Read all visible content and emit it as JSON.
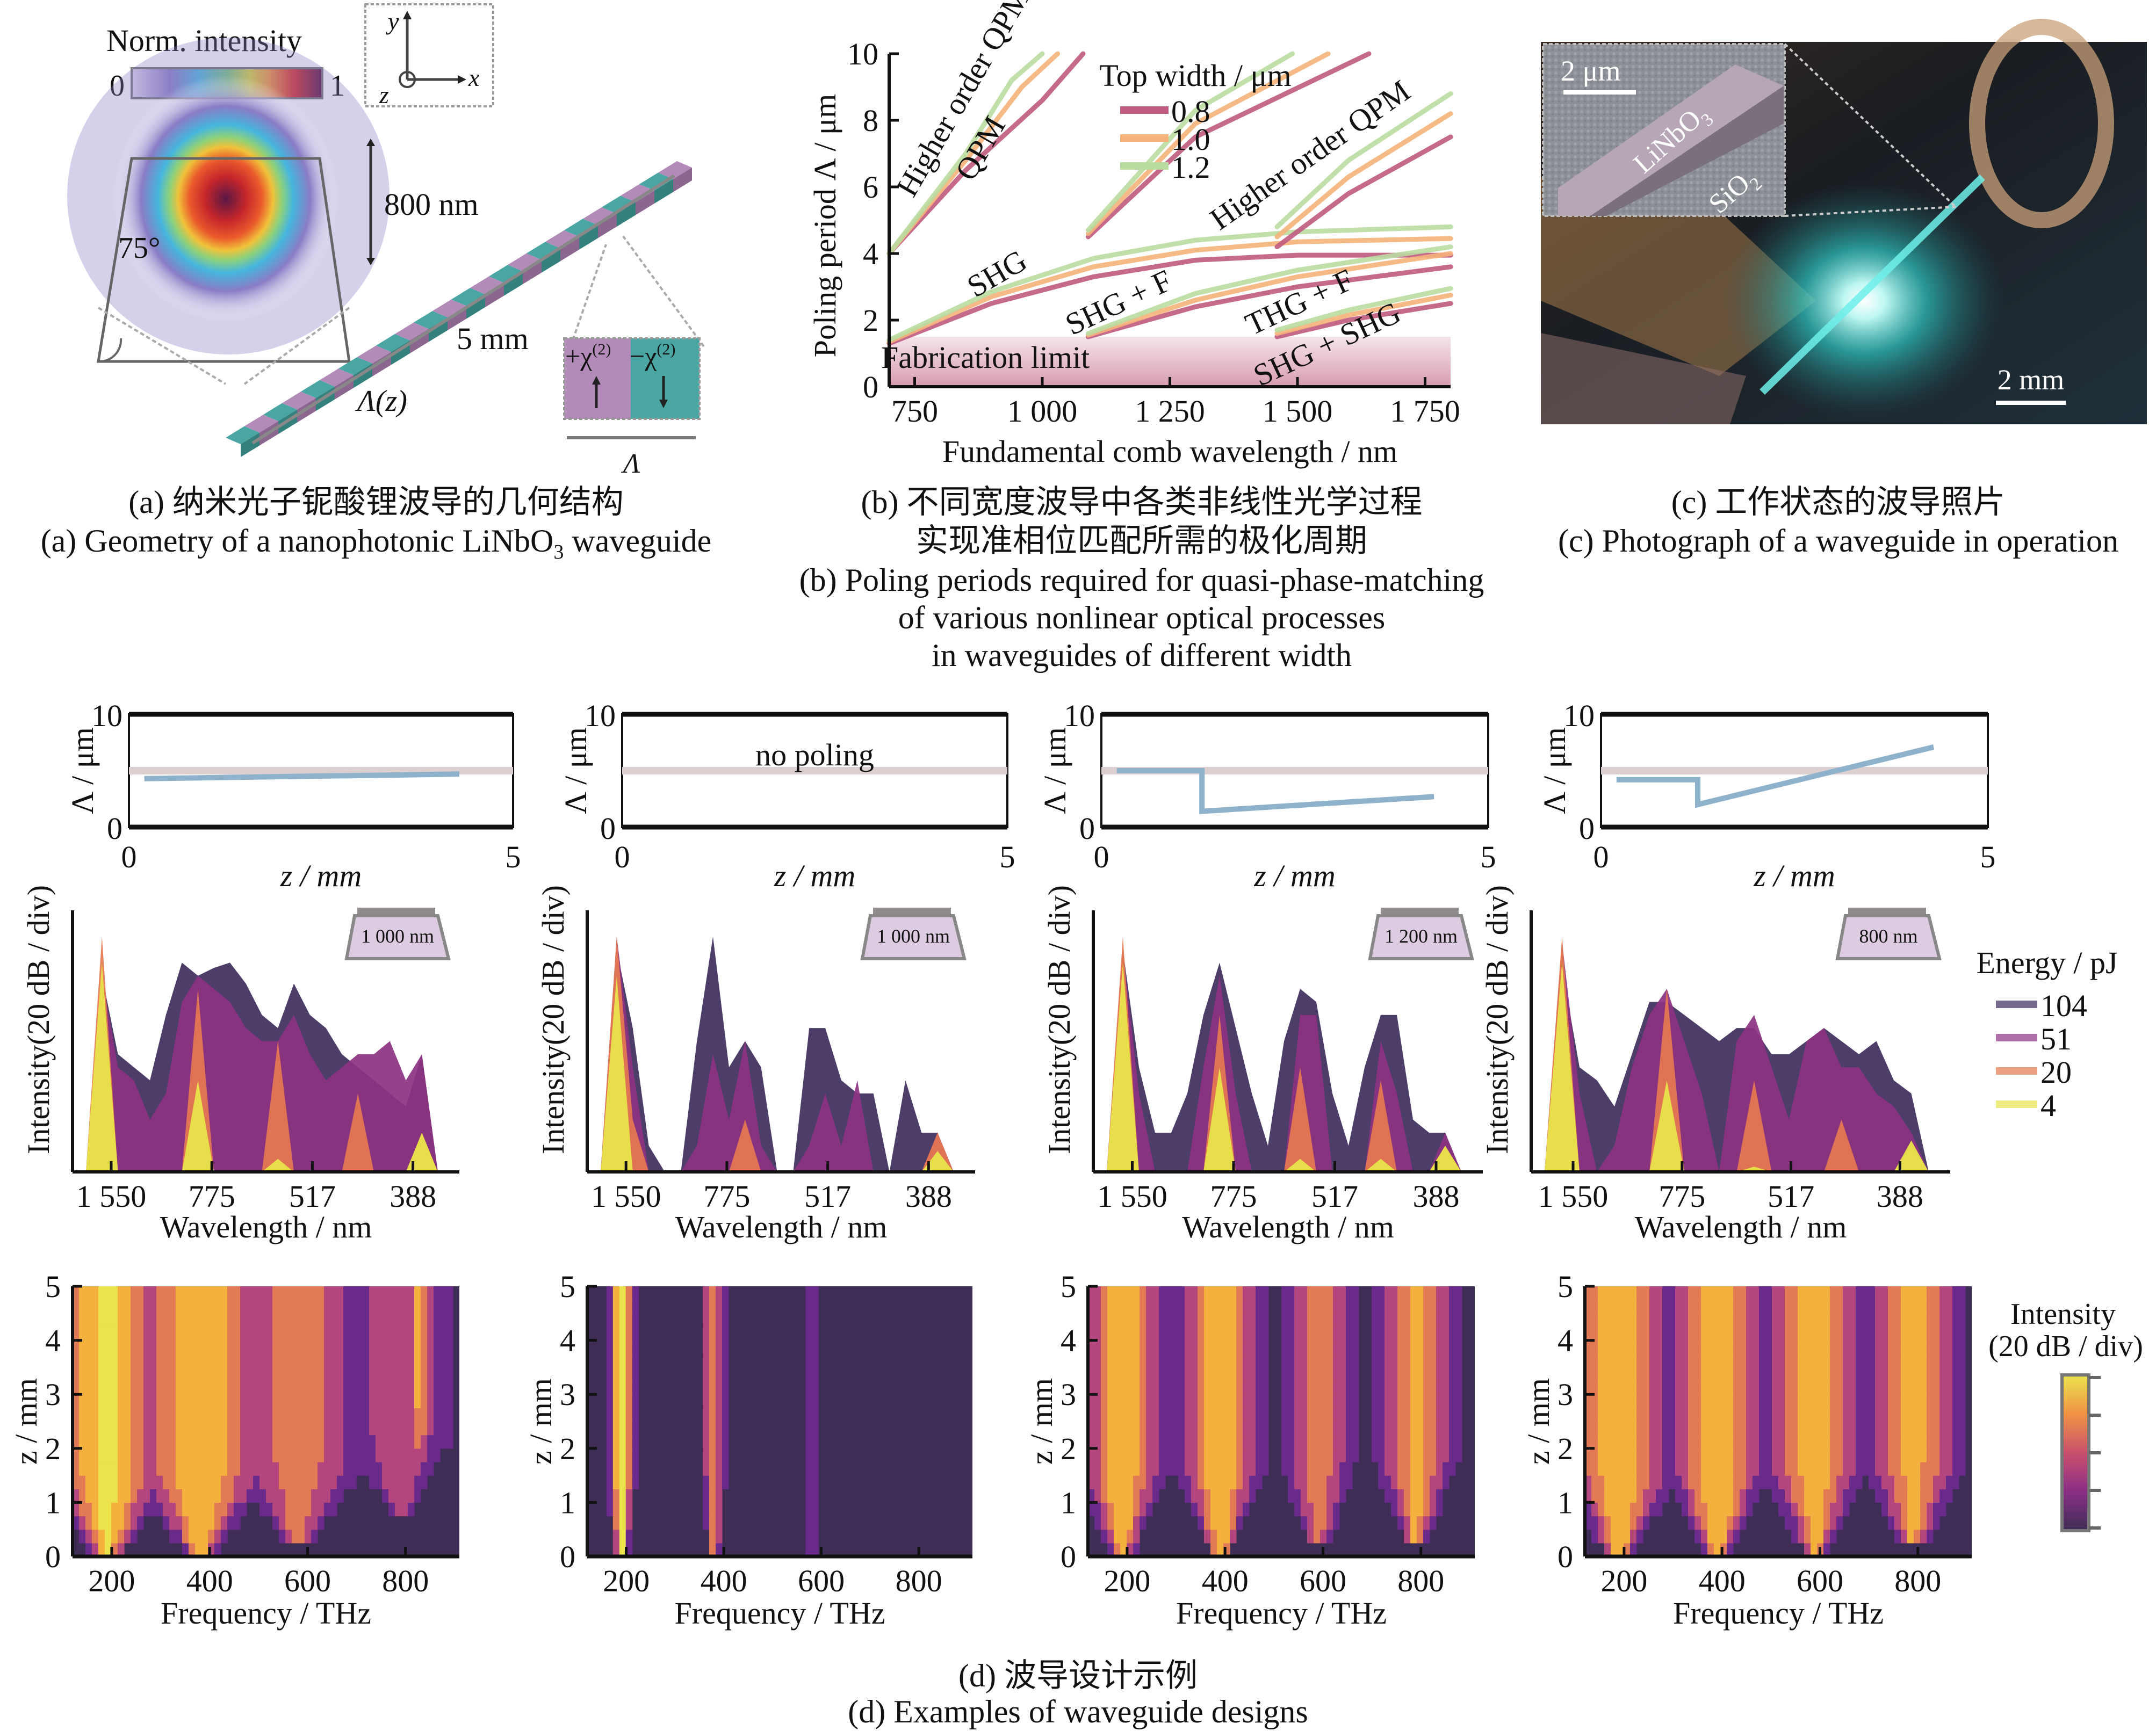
{
  "captions": {
    "a_cn": "(a) 纳米光子铌酸锂波导的几何结构",
    "a_en_pre": "(a) Geometry of a nanophotonic LiNbO",
    "a_en_sub": "3",
    "a_en_post": " waveguide",
    "b_cn_1": "(b) 不同宽度波导中各类非线性光学过程",
    "b_cn_2": "实现准相位匹配所需的极化周期",
    "b_en_1": "(b) Poling periods required for quasi-phase-matching",
    "b_en_2": "of various nonlinear optical processes",
    "b_en_3": "in waveguides of different width",
    "c_cn": "(c) 工作状态的波导照片",
    "c_en": "(c) Photograph of a waveguide in operation",
    "d_cn": "(d) 波导设计示例",
    "d_en": "(d) Examples of waveguide designs"
  },
  "panel_a": {
    "colorbar_title": "Norm. intensity",
    "colorbar_min": "0",
    "colorbar_max": "1",
    "axis_y": "y",
    "axis_x": "x",
    "axis_z": "z",
    "height_label": "800 nm",
    "angle_label": "75°",
    "length_label": "5 mm",
    "period_label": "Λ(z)",
    "domain_plus": "+χ",
    "domain_minus": "−χ",
    "domain_sup": "(2)",
    "domain_period": "Λ"
  },
  "panel_c": {
    "scale_micro": "2 μm",
    "scale_macro": "2 mm",
    "label_linbo": "LiNbO",
    "label_linbo_sub": "3",
    "label_sio": "SiO",
    "label_sio_sub": "2"
  },
  "chart_data": [
    {
      "id": "b",
      "type": "line",
      "title": "",
      "xlabel": "Fundamental comb wavelength / nm",
      "ylabel": "Poling period Λ / μm",
      "xlim": [
        700,
        1800
      ],
      "ylim": [
        0,
        10
      ],
      "xticks": [
        750,
        1000,
        1250,
        1500,
        1750
      ],
      "xtick_labels": [
        "750",
        "1 000",
        "1 250",
        "1 500",
        "1 750"
      ],
      "yticks": [
        0,
        2,
        4,
        6,
        8,
        10
      ],
      "legend_title": "Top width / μm",
      "legend_position": "top-center",
      "fabrication_limit": 1.5,
      "series": [
        {
          "name": "0.8",
          "color": "#c05a80"
        },
        {
          "name": "1.0",
          "color": "#f5b27a"
        },
        {
          "name": "1.2",
          "color": "#b9dca0"
        }
      ],
      "curves": [
        {
          "process": "Higher order QPM (left)",
          "width": "0.8",
          "x": [
            700,
            850,
            1000,
            1080
          ],
          "y": [
            4.0,
            6.5,
            8.6,
            10
          ]
        },
        {
          "process": "Higher order QPM (left)",
          "width": "1.0",
          "x": [
            700,
            850,
            960,
            1030
          ],
          "y": [
            4.0,
            6.8,
            9.0,
            10
          ]
        },
        {
          "process": "Higher order QPM (left)",
          "width": "1.2",
          "x": [
            700,
            850,
            940,
            1000
          ],
          "y": [
            4.0,
            7.0,
            9.2,
            10
          ]
        },
        {
          "process": "Higher order QPM (middle)",
          "width": "0.8",
          "x": [
            1090,
            1300,
            1640
          ],
          "y": [
            4.5,
            7.5,
            10
          ]
        },
        {
          "process": "Higher order QPM (middle)",
          "width": "1.0",
          "x": [
            1090,
            1300,
            1560
          ],
          "y": [
            4.6,
            7.9,
            10
          ]
        },
        {
          "process": "Higher order QPM (middle)",
          "width": "1.2",
          "x": [
            1090,
            1300,
            1490
          ],
          "y": [
            4.7,
            8.3,
            10
          ]
        },
        {
          "process": "SHG",
          "width": "0.8",
          "x": [
            700,
            900,
            1100,
            1300,
            1500,
            1800
          ],
          "y": [
            1.3,
            2.5,
            3.3,
            3.8,
            3.95,
            3.95
          ]
        },
        {
          "process": "SHG",
          "width": "1.0",
          "x": [
            700,
            900,
            1100,
            1300,
            1500,
            1800
          ],
          "y": [
            1.35,
            2.7,
            3.6,
            4.1,
            4.35,
            4.45
          ]
        },
        {
          "process": "SHG",
          "width": "1.2",
          "x": [
            700,
            900,
            1100,
            1300,
            1500,
            1800
          ],
          "y": [
            1.4,
            2.85,
            3.85,
            4.4,
            4.65,
            4.8
          ]
        },
        {
          "process": "SHG + F",
          "width": "0.8",
          "x": [
            1090,
            1300,
            1500,
            1800
          ],
          "y": [
            1.5,
            2.4,
            3.0,
            3.6
          ]
        },
        {
          "process": "SHG + F",
          "width": "1.0",
          "x": [
            1090,
            1300,
            1500,
            1800
          ],
          "y": [
            1.55,
            2.6,
            3.3,
            4.0
          ]
        },
        {
          "process": "SHG + F",
          "width": "1.2",
          "x": [
            1090,
            1300,
            1500,
            1800
          ],
          "y": [
            1.6,
            2.8,
            3.5,
            4.2
          ]
        },
        {
          "process": "Higher order QPM (right)",
          "width": "0.8",
          "x": [
            1460,
            1600,
            1800
          ],
          "y": [
            4.2,
            5.8,
            7.5
          ]
        },
        {
          "process": "Higher order QPM (right)",
          "width": "1.0",
          "x": [
            1460,
            1600,
            1800
          ],
          "y": [
            4.5,
            6.3,
            8.2
          ]
        },
        {
          "process": "Higher order QPM (right)",
          "width": "1.2",
          "x": [
            1460,
            1600,
            1800
          ],
          "y": [
            4.8,
            6.8,
            8.8
          ]
        },
        {
          "process": "THG + F / SHG + SHG",
          "width": "0.8",
          "x": [
            1460,
            1600,
            1800
          ],
          "y": [
            1.5,
            2.0,
            2.5
          ]
        },
        {
          "process": "THG + F / SHG + SHG",
          "width": "1.0",
          "x": [
            1460,
            1600,
            1800
          ],
          "y": [
            1.6,
            2.15,
            2.75
          ]
        },
        {
          "process": "THG + F / SHG + SHG",
          "width": "1.2",
          "x": [
            1460,
            1600,
            1800
          ],
          "y": [
            1.7,
            2.3,
            2.95
          ]
        }
      ],
      "annotations": [
        "Higher order QPM",
        "Higher order QPM",
        "SHG",
        "SHG + F",
        "THG + F",
        "SHG + SHG",
        "Fabrication limit"
      ]
    },
    {
      "id": "d-poling",
      "type": "line",
      "xlabel": "z / mm",
      "ylabel": "Λ / μm",
      "xlim": [
        0,
        5
      ],
      "ylim": [
        0,
        10
      ],
      "xticks": [
        0,
        5
      ],
      "yticks": [
        0,
        10
      ],
      "reference_line": 5,
      "panels": [
        {
          "note": "",
          "x": [
            0.2,
            4.3
          ],
          "y": [
            4.3,
            4.7
          ]
        },
        {
          "note": "no poling",
          "x": [],
          "y": []
        },
        {
          "note": "",
          "x": [
            0.2,
            1.3,
            1.3,
            4.3
          ],
          "y": [
            5.0,
            5.0,
            1.4,
            2.7
          ]
        },
        {
          "note": "",
          "x": [
            0.2,
            1.25,
            1.25,
            4.3
          ],
          "y": [
            4.2,
            4.2,
            2.0,
            7.1
          ]
        }
      ]
    },
    {
      "id": "d-spectra",
      "type": "area",
      "xlabel": "Wavelength / nm",
      "ylabel": "Intensity(20 dB / div)",
      "xtick_labels": [
        "1 550",
        "775",
        "517",
        "388"
      ],
      "legend_title": "Energy / pJ",
      "legend_position": "right",
      "series": [
        {
          "name": "104",
          "color": "#3d2d5c"
        },
        {
          "name": "51",
          "color": "#8c3282"
        },
        {
          "name": "20",
          "color": "#e6784f"
        },
        {
          "name": "4",
          "color": "#e8e34a"
        }
      ],
      "panels": [
        {
          "inset_width": "1 000 nm",
          "profile_104": [
            0.0,
            0.75,
            0.45,
            0.4,
            0.35,
            0.6,
            0.8,
            0.75,
            0.78,
            0.8,
            0.72,
            0.6,
            0.55,
            0.72,
            0.6,
            0.55,
            0.45,
            0.4,
            0.35,
            0.3,
            0.25,
            0.45,
            0.0
          ],
          "profile_51": [
            0.0,
            0.75,
            0.4,
            0.35,
            0.2,
            0.3,
            0.65,
            0.75,
            0.7,
            0.65,
            0.55,
            0.5,
            0.5,
            0.6,
            0.45,
            0.35,
            0.4,
            0.45,
            0.45,
            0.5,
            0.35,
            0.45,
            0.0
          ],
          "profile_20": [
            0,
            0.9,
            0,
            0,
            0,
            0,
            0,
            0.7,
            0,
            0,
            0,
            0,
            0.5,
            0,
            0,
            0,
            0,
            0.3,
            0,
            0,
            0,
            0.15,
            0
          ],
          "profile_4": [
            0,
            0.8,
            0,
            0,
            0,
            0,
            0,
            0.35,
            0,
            0,
            0,
            0,
            0.05,
            0,
            0,
            0,
            0,
            0,
            0,
            0,
            0,
            0.15,
            0
          ]
        },
        {
          "inset_width": "1 000 nm",
          "profile_104": [
            0,
            0.85,
            0.55,
            0.1,
            0,
            0,
            0.5,
            0.9,
            0.4,
            0.5,
            0.4,
            0,
            0,
            0.55,
            0.55,
            0.35,
            0.3,
            0.3,
            0,
            0.35,
            0.15,
            0.15,
            0
          ],
          "profile_51": [
            0,
            0.9,
            0.4,
            0,
            0,
            0,
            0.1,
            0.45,
            0.2,
            0.5,
            0.1,
            0,
            0,
            0.1,
            0.3,
            0.1,
            0.35,
            0,
            0,
            0,
            0,
            0.15,
            0
          ],
          "profile_20": [
            0,
            0.9,
            0.2,
            0,
            0,
            0,
            0,
            0,
            0,
            0.2,
            0,
            0,
            0,
            0,
            0,
            0,
            0,
            0,
            0,
            0,
            0,
            0.15,
            0
          ],
          "profile_4": [
            0,
            0.75,
            0,
            0,
            0,
            0,
            0,
            0,
            0,
            0,
            0,
            0,
            0,
            0,
            0,
            0,
            0,
            0,
            0,
            0,
            0,
            0.08,
            0
          ]
        },
        {
          "inset_width": "1 200 nm",
          "profile_104": [
            0,
            0.85,
            0.4,
            0.15,
            0.15,
            0.3,
            0.6,
            0.8,
            0.55,
            0.3,
            0.1,
            0.5,
            0.7,
            0.65,
            0.3,
            0.1,
            0.4,
            0.6,
            0.6,
            0.2,
            0.15,
            0.15,
            0
          ],
          "profile_51": [
            0,
            0.85,
            0.3,
            0,
            0,
            0,
            0.4,
            0.75,
            0.3,
            0,
            0,
            0,
            0.6,
            0.6,
            0,
            0,
            0,
            0.5,
            0.3,
            0,
            0,
            0.15,
            0
          ],
          "profile_20": [
            0,
            0.9,
            0,
            0,
            0,
            0,
            0,
            0.6,
            0,
            0,
            0,
            0,
            0.4,
            0,
            0,
            0,
            0,
            0.35,
            0,
            0,
            0,
            0.1,
            0
          ],
          "profile_4": [
            0,
            0.8,
            0,
            0,
            0,
            0,
            0,
            0.4,
            0,
            0,
            0,
            0,
            0.05,
            0,
            0,
            0,
            0,
            0.05,
            0,
            0,
            0,
            0.1,
            0
          ]
        },
        {
          "inset_width": "800 nm",
          "profile_104": [
            0,
            0.78,
            0.4,
            0.35,
            0.25,
            0.45,
            0.65,
            0.65,
            0.6,
            0.55,
            0.5,
            0.55,
            0.55,
            0.45,
            0.45,
            0.5,
            0.55,
            0.5,
            0.45,
            0.5,
            0.35,
            0.3,
            0
          ],
          "profile_51": [
            0,
            0.88,
            0.3,
            0,
            0.1,
            0.4,
            0.6,
            0.7,
            0.5,
            0.3,
            0,
            0.5,
            0.6,
            0.4,
            0.2,
            0.5,
            0.55,
            0.4,
            0.4,
            0.3,
            0.25,
            0.15,
            0
          ],
          "profile_20": [
            0,
            0.9,
            0,
            0,
            0,
            0,
            0,
            0.7,
            0,
            0,
            0,
            0,
            0.35,
            0,
            0,
            0,
            0,
            0.2,
            0,
            0,
            0,
            0.1,
            0
          ],
          "profile_4": [
            0,
            0.8,
            0,
            0,
            0,
            0,
            0,
            0.35,
            0,
            0,
            0,
            0,
            0.02,
            0,
            0,
            0,
            0,
            0,
            0,
            0,
            0,
            0.12,
            0
          ]
        }
      ]
    },
    {
      "id": "d-evolution",
      "type": "heatmap",
      "xlabel": "Frequency / THz",
      "ylabel": "z / mm",
      "xlim": [
        120,
        910
      ],
      "ylim": [
        0,
        5
      ],
      "xticks": [
        200,
        400,
        600,
        800
      ],
      "yticks": [
        0,
        1,
        2,
        3,
        4,
        5
      ],
      "colorbar_title_1": "Intensity",
      "colorbar_title_2": "(20 dB / div)",
      "colormap": [
        "#3e2e55",
        "#6a2a8c",
        "#b3477d",
        "#e27b55",
        "#f4b13e",
        "#eae34c"
      ],
      "panels": [
        {
          "bands": [
            {
              "f": 190,
              "peak": 0.95,
              "onset_z": 0.0,
              "spread": 90
            },
            {
              "f": 380,
              "peak": 0.85,
              "onset_z": 0.1,
              "spread": 110
            },
            {
              "f": 580,
              "peak": 0.6,
              "onset_z": 0.3,
              "spread": 110
            },
            {
              "f": 790,
              "peak": 0.45,
              "onset_z": 0.8,
              "spread": 90
            },
            {
              "f": 830,
              "peak": 0.8,
              "onset_z": 2.0,
              "spread": 12
            }
          ]
        },
        {
          "bands": [
            {
              "f": 190,
              "peak": 0.95,
              "onset_z": 0.0,
              "spread": 14
            },
            {
              "f": 380,
              "peak": 0.6,
              "onset_z": 0.0,
              "spread": 12
            },
            {
              "f": 580,
              "peak": 0.25,
              "onset_z": 0.0,
              "spread": 8
            }
          ]
        },
        {
          "bands": [
            {
              "f": 190,
              "peak": 0.85,
              "onset_z": 0.0,
              "spread": 60
            },
            {
              "f": 390,
              "peak": 0.9,
              "onset_z": 0.1,
              "spread": 60
            },
            {
              "f": 590,
              "peak": 0.6,
              "onset_z": 0.2,
              "spread": 55
            },
            {
              "f": 790,
              "peak": 0.75,
              "onset_z": 0.3,
              "spread": 60
            }
          ]
        },
        {
          "bands": [
            {
              "f": 190,
              "peak": 0.85,
              "onset_z": 0.0,
              "spread": 80
            },
            {
              "f": 390,
              "peak": 0.9,
              "onset_z": 0.0,
              "spread": 70
            },
            {
              "f": 590,
              "peak": 0.8,
              "onset_z": 0.1,
              "spread": 75
            },
            {
              "f": 790,
              "peak": 0.75,
              "onset_z": 0.2,
              "spread": 75
            }
          ]
        }
      ]
    }
  ]
}
